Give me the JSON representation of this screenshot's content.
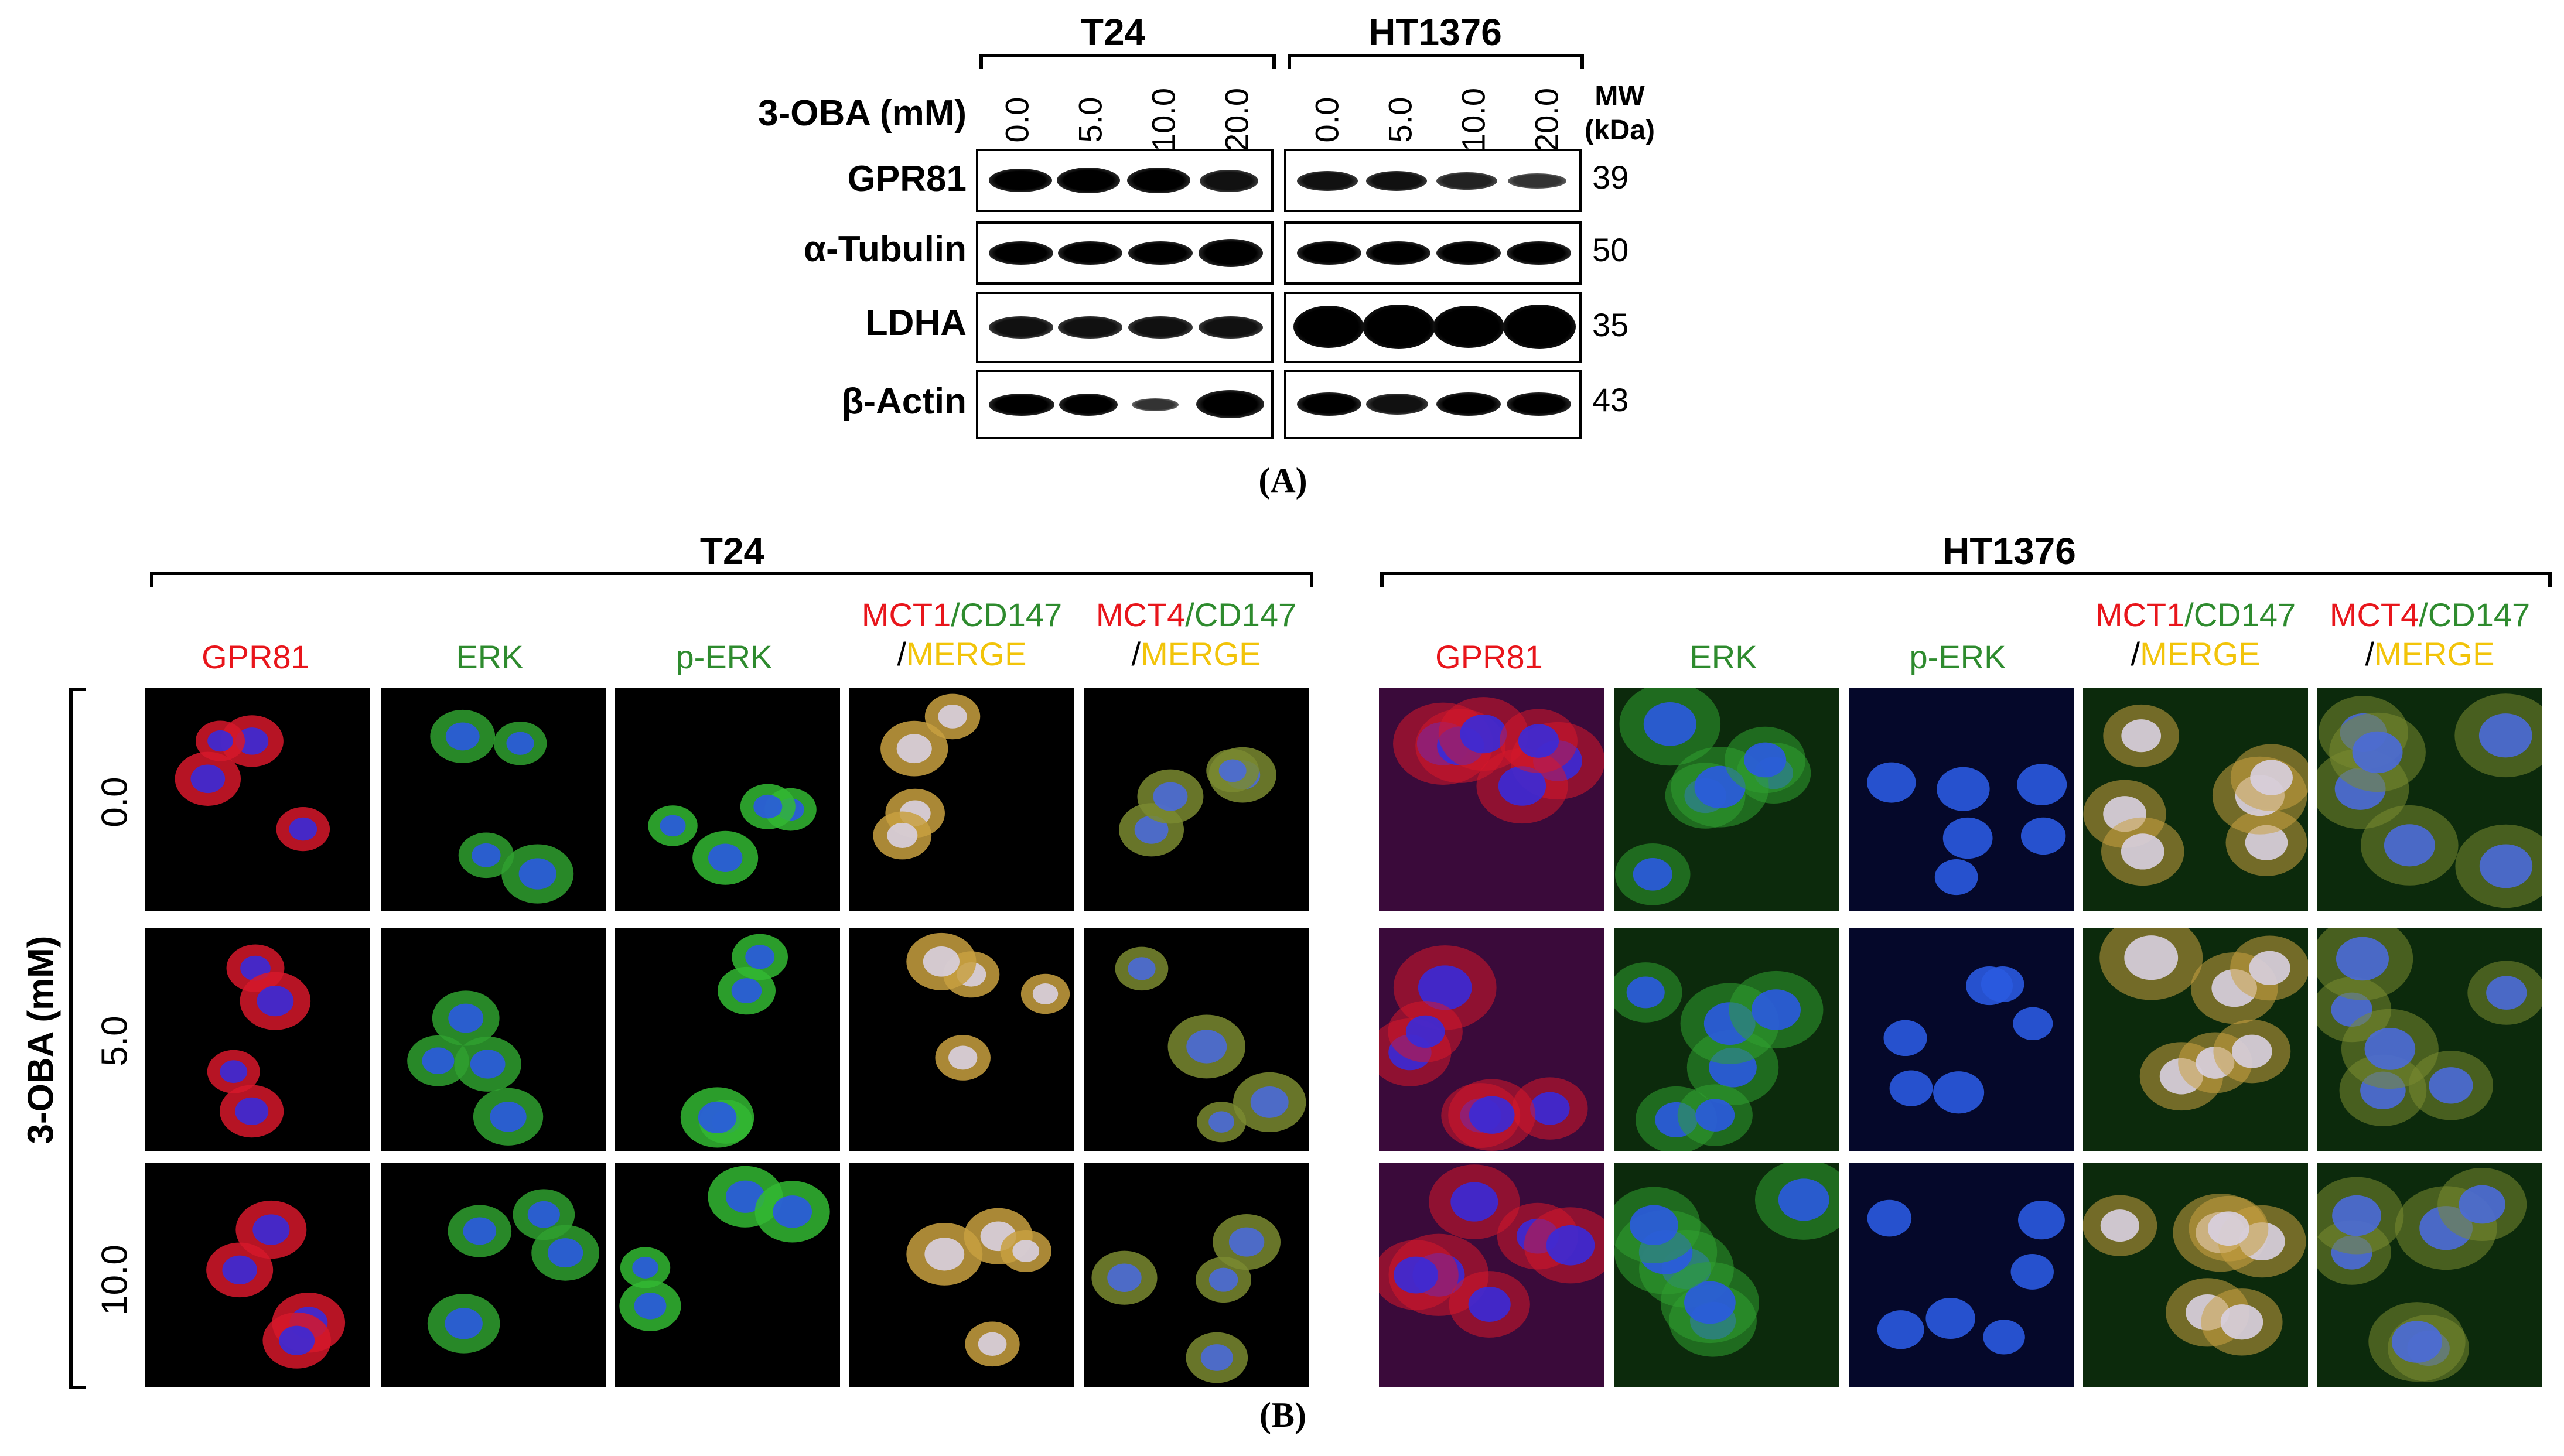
{
  "panel_a": {
    "cell_lines": [
      "T24",
      "HT1376"
    ],
    "treatment_label": "3-OBA (mM)",
    "doses": [
      "0.0",
      "5.0",
      "10.0",
      "20.0"
    ],
    "mw_header_line1": "MW",
    "mw_header_line2": "(kDa)",
    "proteins": [
      {
        "name": "GPR81",
        "mw": "39"
      },
      {
        "name": "α-Tubulin",
        "mw": "50"
      },
      {
        "name": "LDHA",
        "mw": "35"
      },
      {
        "name": "β-Actin",
        "mw": "43"
      }
    ],
    "caption": "(A)"
  },
  "panel_b": {
    "cell_lines": [
      "T24",
      "HT1376"
    ],
    "row_axis_label": "3-OBA (mM)",
    "doses": [
      "0.0",
      "5.0",
      "10.0"
    ],
    "columns": [
      {
        "label": "GPR81"
      },
      {
        "label": "ERK"
      },
      {
        "label": "p-ERK"
      },
      {
        "part1": "MCT1",
        "part2": "/CD147",
        "part3": "/",
        "part4": "MERGE"
      },
      {
        "part1": "MCT4",
        "part2": "/CD147",
        "part3": "/",
        "part4": "MERGE"
      }
    ],
    "caption": "(B)"
  },
  "colors": {
    "red_label": "#e8151b",
    "green_label": "#2e8b2e",
    "yellow_label": "#f2c40a"
  }
}
